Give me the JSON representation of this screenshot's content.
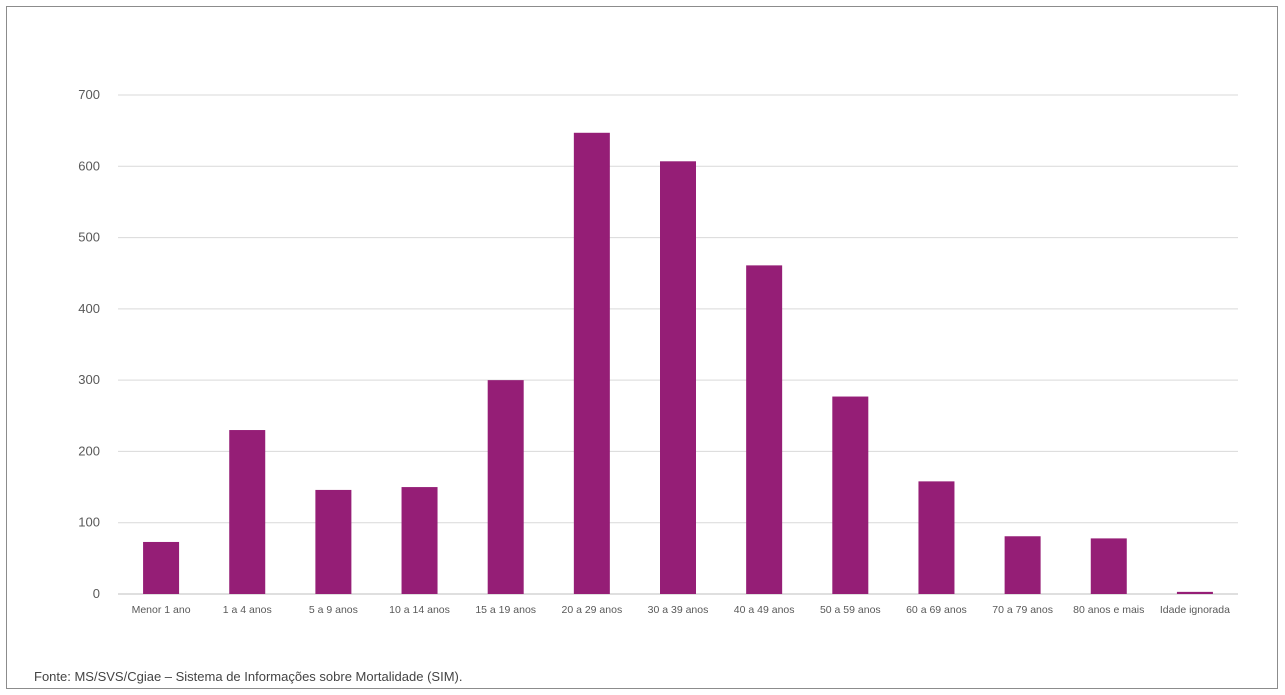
{
  "chart_data": {
    "type": "bar",
    "title": "",
    "xlabel": "",
    "ylabel": "",
    "ylim": [
      0,
      700
    ],
    "yticks": [
      0,
      100,
      200,
      300,
      400,
      500,
      600,
      700
    ],
    "grid": true,
    "legend": "none",
    "color": "#951e76",
    "categories": [
      "Menor 1 ano",
      "1 a 4 anos",
      "5 a 9 anos",
      "10 a 14 anos",
      "15 a 19 anos",
      "20 a 29 anos",
      "30 a 39 anos",
      "40 a 49 anos",
      "50 a 59 anos",
      "60 a 69 anos",
      "70 a 79 anos",
      "80 anos e mais",
      "Idade ignorada"
    ],
    "values": [
      73,
      230,
      146,
      150,
      300,
      647,
      607,
      461,
      277,
      158,
      81,
      78,
      3
    ]
  },
  "source": "Fonte: MS/SVS/Cgiae – Sistema de Informações sobre Mortalidade (SIM)."
}
